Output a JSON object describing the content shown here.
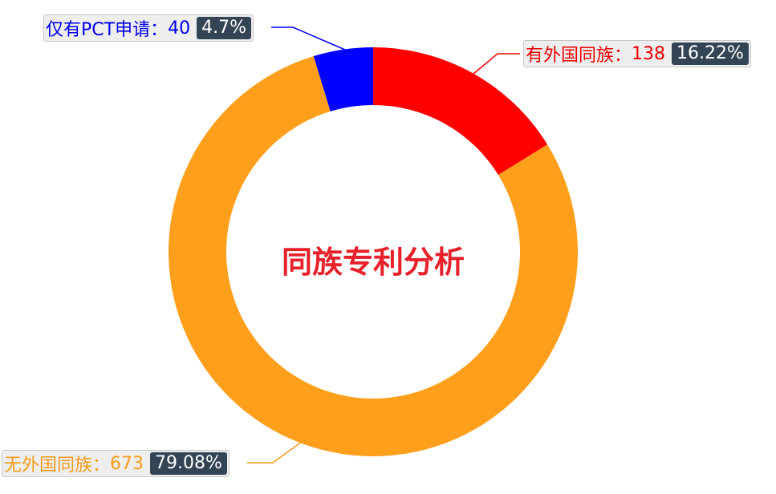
{
  "chart_data": {
    "type": "pie",
    "variant": "donut",
    "title": "同族专利分析",
    "slices": [
      {
        "name": "有外国同族",
        "value": 138,
        "percent": "16.22%",
        "color": "#ff0000"
      },
      {
        "name": "无外国同族",
        "value": 673,
        "percent": "79.08%",
        "color": "#ff9f1c"
      },
      {
        "name": "仅有PCT申请",
        "value": 40,
        "percent": "4.7%",
        "color": "#0000ff"
      }
    ],
    "separator": "：",
    "legend": "none"
  }
}
